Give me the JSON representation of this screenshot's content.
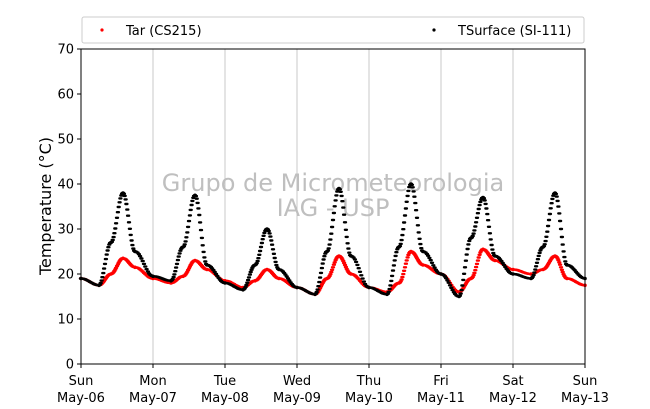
{
  "chart_data": {
    "type": "scatter",
    "title": "",
    "xlabel": "",
    "ylabel": "Temperature (°C)",
    "ylim": [
      0,
      70
    ],
    "y_ticks": [
      "0",
      "10",
      "20",
      "30",
      "40",
      "50",
      "60",
      "70"
    ],
    "xlim": [
      "2018-05-06 00:00",
      "2018-05-13 00:00"
    ],
    "x_ticks": [
      {
        "day": "Sun",
        "date": "May-06"
      },
      {
        "day": "Mon",
        "date": "May-07"
      },
      {
        "day": "Tue",
        "date": "May-08"
      },
      {
        "day": "Wed",
        "date": "May-09"
      },
      {
        "day": "Thu",
        "date": "May-10"
      },
      {
        "day": "Fri",
        "date": "May-11"
      },
      {
        "day": "Sat",
        "date": "May-12"
      },
      {
        "day": "Sun",
        "date": "May-13"
      }
    ],
    "grid": "vertical",
    "legend_position": "top",
    "watermark": [
      "Grupo de Micrometeorologia",
      "IAG - USP"
    ],
    "series": [
      {
        "name": "Tar (CS215)",
        "color": "#ff0000",
        "x": [
          "2018-05-06 00:00",
          "2018-05-06 06:00",
          "2018-05-06 10:00",
          "2018-05-06 14:00",
          "2018-05-06 18:00",
          "2018-05-07 00:00",
          "2018-05-07 06:00",
          "2018-05-07 10:00",
          "2018-05-07 14:00",
          "2018-05-07 18:00",
          "2018-05-08 00:00",
          "2018-05-08 06:00",
          "2018-05-08 10:00",
          "2018-05-08 14:00",
          "2018-05-08 18:00",
          "2018-05-09 00:00",
          "2018-05-09 06:00",
          "2018-05-09 10:00",
          "2018-05-09 14:00",
          "2018-05-09 18:00",
          "2018-05-10 00:00",
          "2018-05-10 06:00",
          "2018-05-10 10:00",
          "2018-05-10 14:00",
          "2018-05-10 18:00",
          "2018-05-11 00:00",
          "2018-05-11 06:00",
          "2018-05-11 10:00",
          "2018-05-11 14:00",
          "2018-05-11 18:00",
          "2018-05-12 00:00",
          "2018-05-12 06:00",
          "2018-05-12 10:00",
          "2018-05-12 14:00",
          "2018-05-12 18:00",
          "2018-05-13 00:00"
        ],
        "y": [
          19,
          17.5,
          20,
          23.5,
          21.5,
          19,
          18,
          19.5,
          23,
          21,
          18.5,
          17,
          18.5,
          21,
          19,
          17,
          15.5,
          19,
          24,
          20,
          17,
          16,
          18,
          25,
          22,
          20,
          16,
          19,
          25.5,
          23,
          21,
          20,
          21,
          24,
          19,
          17.5
        ]
      },
      {
        "name": "TSurface (SI-111)",
        "color": "#000000",
        "x": [
          "2018-05-06 00:00",
          "2018-05-06 06:00",
          "2018-05-06 10:00",
          "2018-05-06 14:00",
          "2018-05-06 18:00",
          "2018-05-07 00:00",
          "2018-05-07 06:00",
          "2018-05-07 10:00",
          "2018-05-07 14:00",
          "2018-05-07 18:00",
          "2018-05-08 00:00",
          "2018-05-08 06:00",
          "2018-05-08 10:00",
          "2018-05-08 14:00",
          "2018-05-08 18:00",
          "2018-05-09 00:00",
          "2018-05-09 06:00",
          "2018-05-09 10:00",
          "2018-05-09 14:00",
          "2018-05-09 18:00",
          "2018-05-10 00:00",
          "2018-05-10 06:00",
          "2018-05-10 10:00",
          "2018-05-10 14:00",
          "2018-05-10 18:00",
          "2018-05-11 00:00",
          "2018-05-11 06:00",
          "2018-05-11 10:00",
          "2018-05-11 14:00",
          "2018-05-11 18:00",
          "2018-05-12 00:00",
          "2018-05-12 06:00",
          "2018-05-12 10:00",
          "2018-05-12 14:00",
          "2018-05-12 18:00",
          "2018-05-13 00:00"
        ],
        "y": [
          19,
          17.5,
          27,
          38,
          25,
          19.5,
          18.5,
          26,
          37.5,
          22,
          18,
          16.5,
          22,
          30,
          21,
          17,
          15.5,
          25,
          39,
          24,
          17,
          15.5,
          26,
          40,
          25,
          20,
          15,
          28,
          37,
          24,
          20,
          19,
          26,
          38,
          22,
          19
        ]
      }
    ]
  }
}
